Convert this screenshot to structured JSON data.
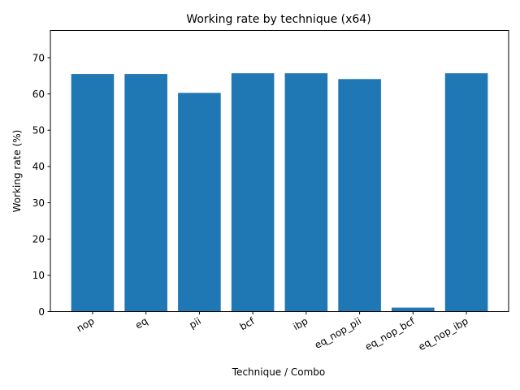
{
  "chart_data": {
    "type": "bar",
    "title": "Working rate by technique (x64)",
    "xlabel": "Technique / Combo",
    "ylabel": "Working rate (%)",
    "categories": [
      "nop",
      "eq",
      "pii",
      "bcf",
      "ibp",
      "eq_nop_pii",
      "eq_nop_bcf",
      "eq_nop_ibp"
    ],
    "values": [
      65.5,
      65.5,
      60.3,
      65.7,
      65.7,
      64.1,
      1.1,
      65.7
    ],
    "ylim": [
      0,
      77.5
    ],
    "yticks": [
      0,
      10,
      20,
      30,
      40,
      50,
      60,
      70
    ],
    "x_tick_rotation": 30,
    "grid": false,
    "legend": "none",
    "bar_color": "#1f77b4"
  }
}
